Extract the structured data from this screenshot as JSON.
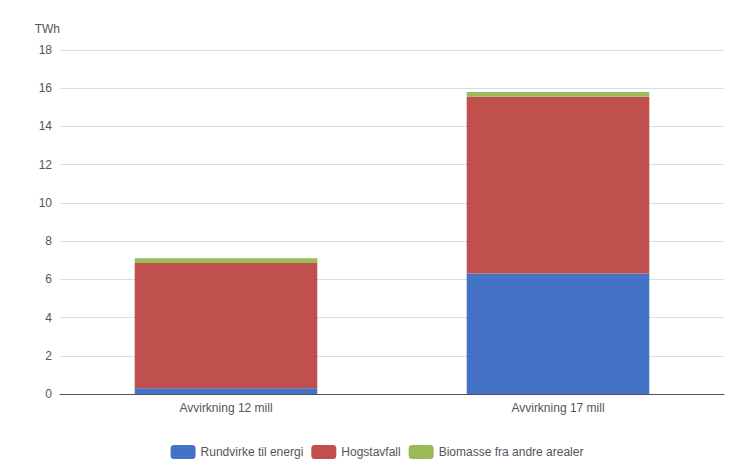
{
  "chart_data": {
    "type": "bar",
    "stacked": true,
    "categories": [
      "Avvirkning 12 mill",
      "Avvirkning 17 mill"
    ],
    "series": [
      {
        "name": "Rundvirke til energi",
        "color": "#4472C4",
        "values": [
          0.3,
          6.3
        ]
      },
      {
        "name": "Hogstavfall",
        "color": "#C0504D",
        "values": [
          6.55,
          9.25
        ]
      },
      {
        "name": "Biomasse fra andre arealer",
        "color": "#9BBB59",
        "values": [
          0.25,
          0.25
        ]
      }
    ],
    "ylabel": "TWh",
    "ylim": [
      0,
      18
    ],
    "yticks": [
      0,
      2,
      4,
      6,
      8,
      10,
      12,
      14,
      16,
      18
    ],
    "grid": true,
    "legend": "bottom"
  }
}
